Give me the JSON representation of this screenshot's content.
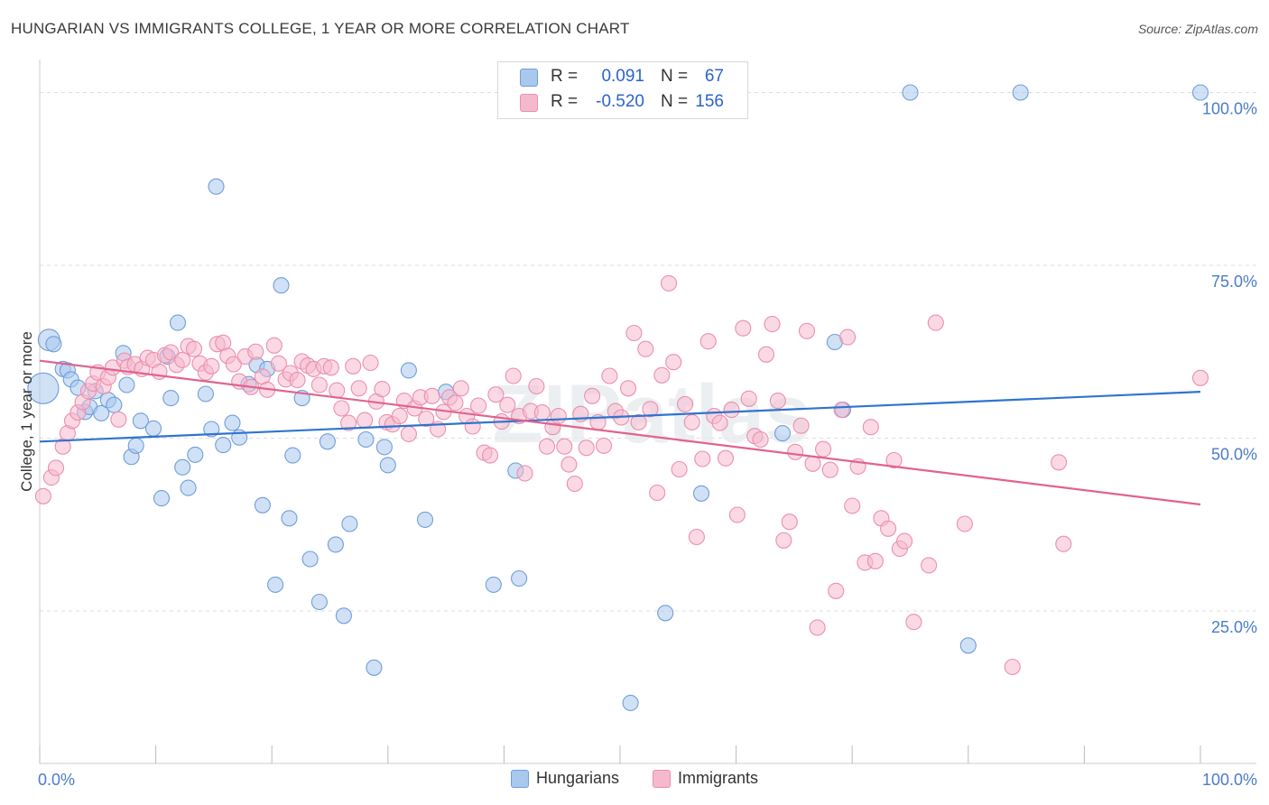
{
  "title": "HUNGARIAN VS IMMIGRANTS COLLEGE, 1 YEAR OR MORE CORRELATION CHART",
  "source": "Source: ZipAtlas.com",
  "watermark": "ZIPatlas",
  "stats": {
    "rows": [
      {
        "r_label": "R =",
        "r_value": "0.091",
        "n_label": "N =",
        "n_value": "67"
      },
      {
        "r_label": "R =",
        "r_value": "-0.520",
        "n_label": "N =",
        "n_value": "156"
      }
    ]
  },
  "legend": {
    "hungarians": "Hungarians",
    "immigrants": "Immigrants"
  },
  "colors": {
    "hungarians_fill": "#a9c8ee",
    "hungarians_stroke": "#6f9ed9",
    "hungarians_line": "#2f74d0",
    "immigrants_fill": "#f5b9cd",
    "immigrants_stroke": "#eb8fae",
    "immigrants_line": "#e0638e",
    "tick_label": "#4a7cc9"
  },
  "chart_data": {
    "type": "scatter",
    "title": "HUNGARIAN VS IMMIGRANTS COLLEGE, 1 YEAR OR MORE CORRELATION CHART",
    "xlabel": "",
    "ylabel": "College, 1 year or more",
    "xlim": [
      0,
      100
    ],
    "ylim": [
      3,
      104
    ],
    "x_tick_labels": [
      "0.0%",
      "100.0%"
    ],
    "y_ticks": [
      25,
      50,
      75,
      100
    ],
    "y_tick_labels": [
      "25.0%",
      "50.0%",
      "75.0%",
      "100.0%"
    ],
    "grid": "horizontal dashed",
    "legend_position": "bottom",
    "series": [
      {
        "name": "Hungarians",
        "R": 0.091,
        "N": 67,
        "trend": {
          "x": [
            0,
            100
          ],
          "y": [
            49.5,
            56.7
          ]
        },
        "points": [
          [
            0.3,
            57.2,
            2
          ],
          [
            0.8,
            64.2,
            1.4
          ],
          [
            1.2,
            63.6,
            1
          ],
          [
            2.0,
            60.0,
            1
          ],
          [
            2.4,
            59.8,
            1
          ],
          [
            2.7,
            58.5,
            1
          ],
          [
            3.3,
            57.3,
            1
          ],
          [
            3.9,
            53.8,
            1
          ],
          [
            4.3,
            54.5,
            1
          ],
          [
            4.8,
            56.8,
            1
          ],
          [
            5.3,
            53.6,
            1
          ],
          [
            5.9,
            55.5,
            1
          ],
          [
            6.4,
            54.8,
            1
          ],
          [
            7.2,
            62.3,
            1
          ],
          [
            7.5,
            57.7,
            1
          ],
          [
            7.9,
            47.3,
            1
          ],
          [
            8.3,
            48.9,
            1
          ],
          [
            8.7,
            52.5,
            1
          ],
          [
            9.8,
            51.4,
            1
          ],
          [
            10.5,
            41.3,
            1
          ],
          [
            11.0,
            61.8,
            1
          ],
          [
            11.3,
            55.8,
            1
          ],
          [
            11.9,
            66.7,
            1
          ],
          [
            12.3,
            45.8,
            1
          ],
          [
            12.8,
            42.8,
            1
          ],
          [
            13.4,
            47.6,
            1
          ],
          [
            14.3,
            56.4,
            1
          ],
          [
            14.8,
            51.3,
            1
          ],
          [
            15.2,
            86.4,
            1
          ],
          [
            15.8,
            49.0,
            1
          ],
          [
            16.6,
            52.2,
            1
          ],
          [
            17.2,
            50.1,
            1
          ],
          [
            18.0,
            57.8,
            1
          ],
          [
            18.7,
            60.6,
            1
          ],
          [
            19.2,
            40.3,
            1
          ],
          [
            19.6,
            60.0,
            1
          ],
          [
            20.3,
            28.8,
            1
          ],
          [
            20.8,
            72.1,
            1
          ],
          [
            21.5,
            38.4,
            1
          ],
          [
            21.8,
            47.5,
            1
          ],
          [
            22.6,
            55.8,
            1
          ],
          [
            23.3,
            32.5,
            1
          ],
          [
            24.1,
            26.3,
            1
          ],
          [
            24.8,
            49.5,
            1
          ],
          [
            25.5,
            34.6,
            1
          ],
          [
            26.2,
            24.3,
            1
          ],
          [
            26.7,
            37.6,
            1
          ],
          [
            28.1,
            49.8,
            1
          ],
          [
            28.8,
            16.8,
            1
          ],
          [
            29.7,
            48.7,
            1
          ],
          [
            30.0,
            46.1,
            1
          ],
          [
            31.8,
            59.8,
            1
          ],
          [
            33.2,
            38.2,
            1
          ],
          [
            35.0,
            56.7,
            1
          ],
          [
            39.1,
            28.8,
            1
          ],
          [
            41.0,
            45.3,
            1
          ],
          [
            41.3,
            29.7,
            1
          ],
          [
            50.9,
            11.7,
            1
          ],
          [
            53.9,
            24.7,
            1
          ],
          [
            57.0,
            42.0,
            1
          ],
          [
            64.0,
            50.7,
            1
          ],
          [
            68.5,
            63.9,
            1
          ],
          [
            69.2,
            54.1,
            1
          ],
          [
            75.0,
            100.0,
            1
          ],
          [
            80.0,
            20.0,
            1
          ],
          [
            84.5,
            100.0,
            1
          ],
          [
            100.0,
            100.0,
            1
          ]
        ]
      },
      {
        "name": "Immigrants",
        "R": -0.52,
        "N": 156,
        "trend": {
          "x": [
            0,
            100
          ],
          "y": [
            61.2,
            40.4
          ]
        },
        "points": [
          [
            0.3,
            41.6
          ],
          [
            1.0,
            44.3
          ],
          [
            1.4,
            45.7
          ],
          [
            2.0,
            48.8
          ],
          [
            2.4,
            50.7
          ],
          [
            2.8,
            52.5
          ],
          [
            3.3,
            53.7
          ],
          [
            3.7,
            55.2
          ],
          [
            4.2,
            56.8
          ],
          [
            4.6,
            57.9
          ],
          [
            5.0,
            59.5
          ],
          [
            5.5,
            57.5
          ],
          [
            5.9,
            58.8
          ],
          [
            6.3,
            60.2
          ],
          [
            6.8,
            52.7
          ],
          [
            7.3,
            61.2
          ],
          [
            7.6,
            60.3
          ],
          [
            8.2,
            60.7
          ],
          [
            8.8,
            60.0
          ],
          [
            9.3,
            61.6
          ],
          [
            9.8,
            61.3
          ],
          [
            10.3,
            59.6
          ],
          [
            10.8,
            62.0
          ],
          [
            11.3,
            62.4
          ],
          [
            11.8,
            60.6
          ],
          [
            12.3,
            61.3
          ],
          [
            12.8,
            63.3
          ],
          [
            13.3,
            62.9
          ],
          [
            13.8,
            60.8
          ],
          [
            14.3,
            59.5
          ],
          [
            14.8,
            60.4
          ],
          [
            15.3,
            63.6
          ],
          [
            15.8,
            63.8
          ],
          [
            16.2,
            61.9
          ],
          [
            16.7,
            60.7
          ],
          [
            17.2,
            58.2
          ],
          [
            17.7,
            61.8
          ],
          [
            18.2,
            57.4
          ],
          [
            18.6,
            62.5
          ],
          [
            19.2,
            58.9
          ],
          [
            19.6,
            57.0
          ],
          [
            20.2,
            63.4
          ],
          [
            20.6,
            60.8
          ],
          [
            21.2,
            58.5
          ],
          [
            21.6,
            59.4
          ],
          [
            22.2,
            58.4
          ],
          [
            22.6,
            61.1
          ],
          [
            23.1,
            60.5
          ],
          [
            23.6,
            60.0
          ],
          [
            24.1,
            57.7
          ],
          [
            24.5,
            60.4
          ],
          [
            25.1,
            60.2
          ],
          [
            25.6,
            56.9
          ],
          [
            26.0,
            54.3
          ],
          [
            26.6,
            52.2
          ],
          [
            27.0,
            60.4
          ],
          [
            27.5,
            57.2
          ],
          [
            28.0,
            52.6
          ],
          [
            28.5,
            60.9
          ],
          [
            29.0,
            55.3
          ],
          [
            29.5,
            57.1
          ],
          [
            29.9,
            52.3
          ],
          [
            30.4,
            52.0
          ],
          [
            31.0,
            53.2
          ],
          [
            31.4,
            55.4
          ],
          [
            31.8,
            50.6
          ],
          [
            32.3,
            54.3
          ],
          [
            32.8,
            55.9
          ],
          [
            33.3,
            52.8
          ],
          [
            33.8,
            56.1
          ],
          [
            34.3,
            51.3
          ],
          [
            34.8,
            53.8
          ],
          [
            35.3,
            55.9
          ],
          [
            35.8,
            55.1
          ],
          [
            36.3,
            57.2
          ],
          [
            36.8,
            53.2
          ],
          [
            37.3,
            51.7
          ],
          [
            37.8,
            54.7
          ],
          [
            38.3,
            47.9
          ],
          [
            38.8,
            47.5
          ],
          [
            39.3,
            56.3
          ],
          [
            39.8,
            52.4
          ],
          [
            40.3,
            54.8
          ],
          [
            40.8,
            59.0
          ],
          [
            41.3,
            53.2
          ],
          [
            41.8,
            44.9
          ],
          [
            42.3,
            53.9
          ],
          [
            42.8,
            57.5
          ],
          [
            43.3,
            53.7
          ],
          [
            43.7,
            48.8
          ],
          [
            44.2,
            51.6
          ],
          [
            44.7,
            53.2
          ],
          [
            45.2,
            48.8
          ],
          [
            45.6,
            46.2
          ],
          [
            46.1,
            43.4
          ],
          [
            46.6,
            53.5
          ],
          [
            47.1,
            48.6
          ],
          [
            47.6,
            56.1
          ],
          [
            48.1,
            52.3
          ],
          [
            48.6,
            48.9
          ],
          [
            49.1,
            59.0
          ],
          [
            49.6,
            53.9
          ],
          [
            50.1,
            53.0
          ],
          [
            50.7,
            57.2
          ],
          [
            51.2,
            65.2
          ],
          [
            51.6,
            52.3
          ],
          [
            52.2,
            62.9
          ],
          [
            52.6,
            54.2
          ],
          [
            53.2,
            42.1
          ],
          [
            53.6,
            59.1
          ],
          [
            54.2,
            72.4
          ],
          [
            54.6,
            61.0
          ],
          [
            55.1,
            45.5
          ],
          [
            55.6,
            54.9
          ],
          [
            56.2,
            52.3
          ],
          [
            56.6,
            35.7
          ],
          [
            57.1,
            47.0
          ],
          [
            57.6,
            64.0
          ],
          [
            58.1,
            53.2
          ],
          [
            58.6,
            52.2
          ],
          [
            59.1,
            47.1
          ],
          [
            59.6,
            54.1
          ],
          [
            60.1,
            38.9
          ],
          [
            60.6,
            65.9
          ],
          [
            61.1,
            55.7
          ],
          [
            61.6,
            50.3
          ],
          [
            62.1,
            49.8
          ],
          [
            62.6,
            62.1
          ],
          [
            63.1,
            66.5
          ],
          [
            63.6,
            55.4
          ],
          [
            64.1,
            35.2
          ],
          [
            64.6,
            37.9
          ],
          [
            65.1,
            48.0
          ],
          [
            65.6,
            51.8
          ],
          [
            66.1,
            65.5
          ],
          [
            66.6,
            46.3
          ],
          [
            67.0,
            22.6
          ],
          [
            67.5,
            48.4
          ],
          [
            68.1,
            45.4
          ],
          [
            68.6,
            27.9
          ],
          [
            69.1,
            54.1
          ],
          [
            69.6,
            64.6
          ],
          [
            70.0,
            40.2
          ],
          [
            70.5,
            45.9
          ],
          [
            71.1,
            32.0
          ],
          [
            71.6,
            51.6
          ],
          [
            72.0,
            32.2
          ],
          [
            72.5,
            38.4
          ],
          [
            73.1,
            36.9
          ],
          [
            73.6,
            46.8
          ],
          [
            74.1,
            34.0
          ],
          [
            74.5,
            35.1
          ],
          [
            75.3,
            23.4
          ],
          [
            76.6,
            31.6
          ],
          [
            77.2,
            66.7
          ],
          [
            79.7,
            37.6
          ],
          [
            83.8,
            16.9
          ],
          [
            87.8,
            46.5
          ],
          [
            88.2,
            34.7
          ],
          [
            100.0,
            58.7
          ]
        ]
      }
    ]
  }
}
